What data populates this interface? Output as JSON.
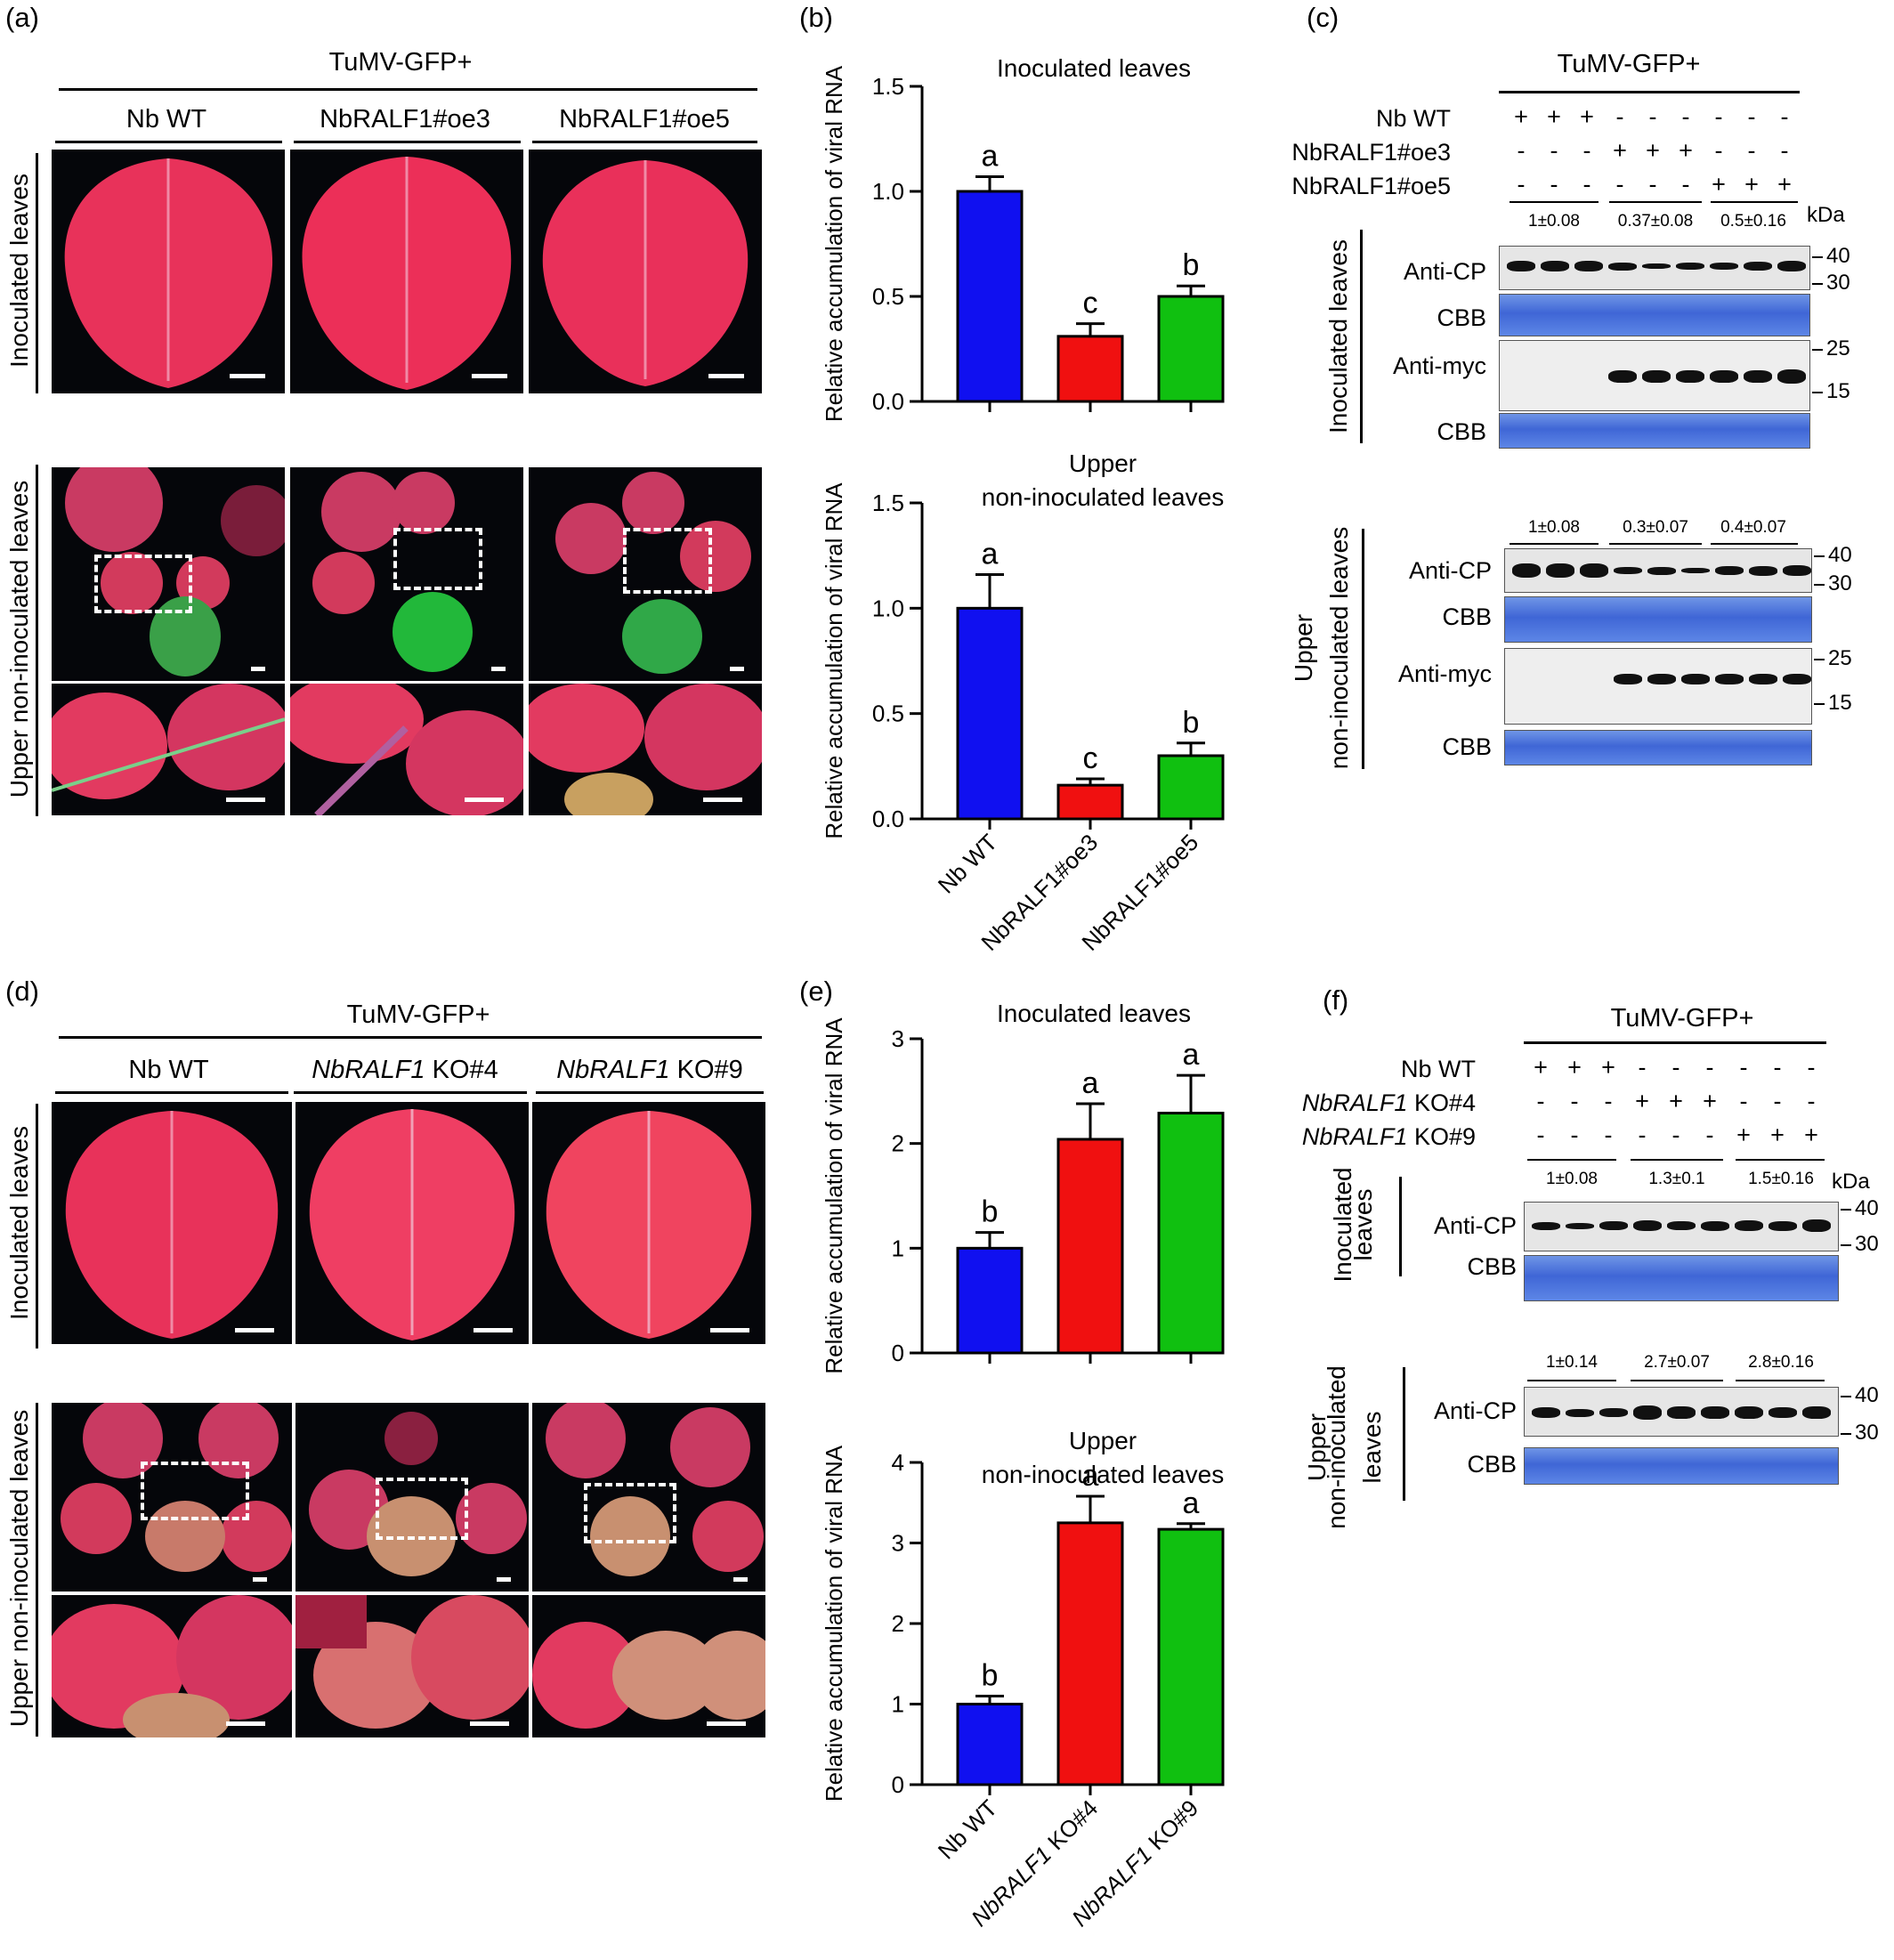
{
  "labels": {
    "a": "(a)",
    "b": "(b)",
    "c": "(c)",
    "d": "(d)",
    "e": "(e)",
    "f": "(f)"
  },
  "panel_a": {
    "header": "TuMV-GFP+",
    "columns": [
      "Nb WT",
      "NbRALF1#oe3",
      "NbRALF1#oe5"
    ],
    "row_inoculated": "Inoculated leaves",
    "row_upper": "Upper non-inoculated leaves"
  },
  "panel_d": {
    "header": "TuMV-GFP+",
    "columns": [
      {
        "italic": "",
        "plain": "Nb WT"
      },
      {
        "italic": "NbRALF1",
        "plain": " KO#4"
      },
      {
        "italic": "NbRALF1",
        "plain": " KO#9"
      }
    ],
    "row_inoculated": "Inoculated leaves",
    "row_upper": "Upper non-inoculated leaves"
  },
  "panel_c": {
    "header": "TuMV-GFP+",
    "row_labels": [
      "Nb WT",
      "NbRALF1#oe3",
      "NbRALF1#oe5"
    ],
    "signs": [
      [
        "+",
        "+",
        "+",
        "-",
        "-",
        "-",
        "-",
        "-",
        "-"
      ],
      [
        "-",
        "-",
        "-",
        "+",
        "+",
        "+",
        "-",
        "-",
        "-"
      ],
      [
        "-",
        "-",
        "-",
        "-",
        "-",
        "-",
        "+",
        "+",
        "+"
      ]
    ],
    "kda": "kDa",
    "side_inoculated": "Inoculated leaves",
    "side_upper_line1": "Upper",
    "side_upper_line2": "non-inoculated leaves",
    "quant_inoculated": [
      "1±0.08",
      "0.37±0.08",
      "0.5±0.16"
    ],
    "quant_upper": [
      "1±0.08",
      "0.3±0.07",
      "0.4±0.07"
    ],
    "blot_labels": {
      "anti_cp": "Anti-CP",
      "cbb": "CBB",
      "anti_myc": "Anti-myc"
    },
    "markers": {
      "m40": "40",
      "m30": "30",
      "m25": "25",
      "m15": "15"
    }
  },
  "panel_f": {
    "header": "TuMV-GFP+",
    "row_labels": [
      {
        "italic": "",
        "plain": "Nb WT"
      },
      {
        "italic": "NbRALF1",
        "plain": " KO#4"
      },
      {
        "italic": "NbRALF1",
        "plain": " KO#9"
      }
    ],
    "signs": [
      [
        "+",
        "+",
        "+",
        "-",
        "-",
        "-",
        "-",
        "-",
        "-"
      ],
      [
        "-",
        "-",
        "-",
        "+",
        "+",
        "+",
        "-",
        "-",
        "-"
      ],
      [
        "-",
        "-",
        "-",
        "-",
        "-",
        "-",
        "+",
        "+",
        "+"
      ]
    ],
    "kda": "kDa",
    "side_inoculated_line1": "Inoculated",
    "side_inoculated_line2": "leaves",
    "side_upper_line1": "Upper",
    "side_upper_line2": "non-inoculated",
    "side_upper_line3": "leaves",
    "quant_inoculated": [
      "1±0.08",
      "1.3±0.1",
      "1.5±0.16"
    ],
    "quant_upper": [
      "1±0.14",
      "2.7±0.07",
      "2.8±0.16"
    ],
    "blot_labels": {
      "anti_cp": "Anti-CP",
      "cbb": "CBB"
    },
    "markers": {
      "m40": "40",
      "m30": "30"
    }
  },
  "chart_data": [
    {
      "type": "bar",
      "panel": "b-top",
      "title": "Inoculated leaves",
      "ylabel": "Relative accumulation of viral RNA",
      "categories": [
        "Nb WT",
        "NbRALF1#oe3",
        "NbRALF1#oe5"
      ],
      "values": [
        1.0,
        0.31,
        0.5
      ],
      "errors": [
        0.07,
        0.06,
        0.05
      ],
      "letters": [
        "a",
        "c",
        "b"
      ],
      "colors": [
        "#1010f0",
        "#f01010",
        "#10c010"
      ],
      "ylim": [
        0,
        1.5
      ],
      "yticks": [
        "0.0",
        "0.5",
        "1.0",
        "1.5"
      ]
    },
    {
      "type": "bar",
      "panel": "b-bottom",
      "title_line1": "Upper",
      "title_line2": "non-inoculated leaves",
      "ylabel": "Relative accumulation of viral RNA",
      "categories": [
        "Nb WT",
        "NbRALF1#oe3",
        "NbRALF1#oe5"
      ],
      "values": [
        1.0,
        0.16,
        0.3
      ],
      "errors": [
        0.16,
        0.03,
        0.06
      ],
      "letters": [
        "a",
        "c",
        "b"
      ],
      "colors": [
        "#1010f0",
        "#f01010",
        "#10c010"
      ],
      "ylim": [
        0,
        1.5
      ],
      "yticks": [
        "0.0",
        "0.5",
        "1.0",
        "1.5"
      ]
    },
    {
      "type": "bar",
      "panel": "e-top",
      "title": "Inoculated leaves",
      "ylabel": "Relative accumulation of viral RNA",
      "categories": [
        "Nb WT",
        "NbRALF1 KO#4",
        "NbRALF1 KO#9"
      ],
      "values": [
        1.0,
        2.04,
        2.29
      ],
      "errors": [
        0.15,
        0.34,
        0.36
      ],
      "letters": [
        "b",
        "a",
        "a"
      ],
      "colors": [
        "#1010f0",
        "#f01010",
        "#10c010"
      ],
      "ylim": [
        0,
        3
      ],
      "yticks": [
        "0",
        "1",
        "2",
        "3"
      ]
    },
    {
      "type": "bar",
      "panel": "e-bottom",
      "title_line1": "Upper",
      "title_line2": "non-inoculated leaves",
      "ylabel": "Relative accumulation of viral RNA",
      "categories": [
        "Nb WT",
        "NbRALF1 KO#4",
        "NbRALF1 KO#9"
      ],
      "values": [
        1.0,
        3.25,
        3.17
      ],
      "errors": [
        0.1,
        0.33,
        0.07
      ],
      "letters": [
        "b",
        "a",
        "a"
      ],
      "colors": [
        "#1010f0",
        "#f01010",
        "#10c010"
      ],
      "ylim": [
        0,
        4
      ],
      "yticks": [
        "0",
        "1",
        "2",
        "3",
        "4"
      ]
    }
  ]
}
